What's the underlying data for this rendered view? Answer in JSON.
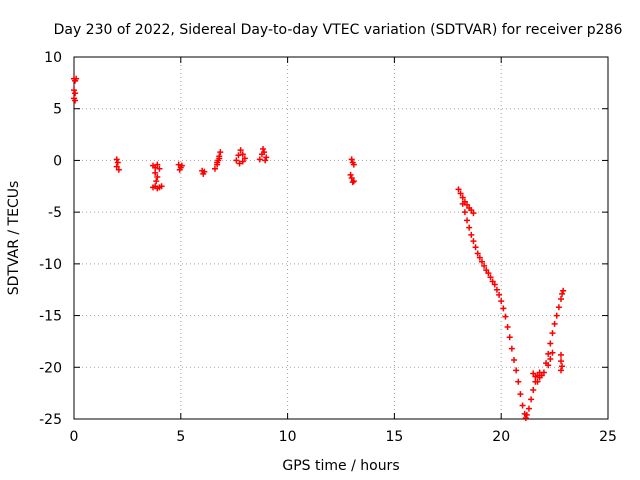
{
  "chart_data": {
    "type": "scatter",
    "title": "Day 230 of 2022, Sidereal Day-to-day VTEC variation (SDTVAR) for receiver p286",
    "xlabel": "GPS time / hours",
    "ylabel": "SDTVAR / TECUs",
    "xlim": [
      0,
      25
    ],
    "ylim": [
      -25,
      10
    ],
    "xticks": [
      0,
      5,
      10,
      15,
      20,
      25
    ],
    "yticks": [
      -25,
      -20,
      -15,
      -10,
      -5,
      0,
      5,
      10
    ],
    "grid": true,
    "legend": "none",
    "marker": "plus",
    "color": "#ff0000",
    "series": [
      {
        "points": [
          [
            0.0,
            7.9
          ],
          [
            0.05,
            7.7
          ],
          [
            0.1,
            7.9
          ],
          [
            0.0,
            6.8
          ],
          [
            0.05,
            6.5
          ],
          [
            0.0,
            6.0
          ],
          [
            0.05,
            5.8
          ],
          [
            2.0,
            0.1
          ],
          [
            2.05,
            -0.2
          ],
          [
            2.0,
            -0.6
          ],
          [
            2.1,
            -0.9
          ],
          [
            3.7,
            -0.5
          ],
          [
            3.8,
            -0.7
          ],
          [
            3.9,
            -0.4
          ],
          [
            4.0,
            -0.8
          ],
          [
            3.8,
            -1.2
          ],
          [
            3.9,
            -1.6
          ],
          [
            3.85,
            -2.0
          ],
          [
            3.7,
            -2.6
          ],
          [
            3.8,
            -2.5
          ],
          [
            3.9,
            -2.7
          ],
          [
            4.0,
            -2.6
          ],
          [
            4.1,
            -2.5
          ],
          [
            4.9,
            -0.4
          ],
          [
            5.0,
            -0.7
          ],
          [
            4.95,
            -0.9
          ],
          [
            5.05,
            -0.5
          ],
          [
            6.0,
            -1.0
          ],
          [
            6.05,
            -1.3
          ],
          [
            6.1,
            -1.1
          ],
          [
            6.6,
            -0.8
          ],
          [
            6.7,
            -0.4
          ],
          [
            6.75,
            0.0
          ],
          [
            6.8,
            0.4
          ],
          [
            6.85,
            0.8
          ],
          [
            6.7,
            -0.2
          ],
          [
            6.8,
            0.2
          ],
          [
            7.6,
            0.0
          ],
          [
            7.7,
            0.5
          ],
          [
            7.8,
            1.0
          ],
          [
            7.9,
            0.6
          ],
          [
            8.0,
            0.2
          ],
          [
            7.75,
            -0.3
          ],
          [
            7.9,
            -0.1
          ],
          [
            8.7,
            0.1
          ],
          [
            8.8,
            0.6
          ],
          [
            8.85,
            1.1
          ],
          [
            8.9,
            0.8
          ],
          [
            9.0,
            0.3
          ],
          [
            8.95,
            0.0
          ],
          [
            13.0,
            0.1
          ],
          [
            13.05,
            -0.2
          ],
          [
            13.1,
            -0.4
          ],
          [
            12.95,
            -1.4
          ],
          [
            13.0,
            -1.7
          ],
          [
            13.1,
            -2.0
          ],
          [
            13.05,
            -2.1
          ],
          [
            18.0,
            -2.8
          ],
          [
            18.1,
            -3.2
          ],
          [
            18.2,
            -3.6
          ],
          [
            18.3,
            -4.0
          ],
          [
            18.4,
            -4.3
          ],
          [
            18.5,
            -4.6
          ],
          [
            18.6,
            -4.8
          ],
          [
            18.7,
            -5.1
          ],
          [
            18.2,
            -4.2
          ],
          [
            18.3,
            -5.0
          ],
          [
            18.4,
            -5.8
          ],
          [
            18.5,
            -6.5
          ],
          [
            18.6,
            -7.2
          ],
          [
            18.7,
            -7.8
          ],
          [
            18.8,
            -8.4
          ],
          [
            18.9,
            -9.0
          ],
          [
            19.0,
            -9.4
          ],
          [
            19.1,
            -9.8
          ],
          [
            19.2,
            -10.2
          ],
          [
            19.3,
            -10.6
          ],
          [
            19.4,
            -10.9
          ],
          [
            19.5,
            -11.3
          ],
          [
            19.6,
            -11.7
          ],
          [
            19.7,
            -12.0
          ],
          [
            19.8,
            -12.5
          ],
          [
            19.9,
            -13.0
          ],
          [
            20.0,
            -13.6
          ],
          [
            20.1,
            -14.3
          ],
          [
            20.2,
            -15.1
          ],
          [
            20.3,
            -16.1
          ],
          [
            20.4,
            -17.1
          ],
          [
            20.5,
            -18.2
          ],
          [
            20.6,
            -19.3
          ],
          [
            20.7,
            -20.3
          ],
          [
            20.8,
            -21.4
          ],
          [
            20.9,
            -22.6
          ],
          [
            21.0,
            -23.7
          ],
          [
            21.1,
            -24.5
          ],
          [
            21.15,
            -24.9
          ],
          [
            21.2,
            -24.6
          ],
          [
            21.3,
            -24.0
          ],
          [
            21.4,
            -23.1
          ],
          [
            21.5,
            -22.2
          ],
          [
            21.6,
            -21.4
          ],
          [
            21.7,
            -20.8
          ],
          [
            21.8,
            -20.5
          ],
          [
            21.9,
            -20.8
          ],
          [
            22.0,
            -20.5
          ],
          [
            22.1,
            -19.6
          ],
          [
            22.2,
            -18.7
          ],
          [
            22.3,
            -17.7
          ],
          [
            22.4,
            -16.7
          ],
          [
            22.5,
            -15.8
          ],
          [
            22.6,
            -15.0
          ],
          [
            22.7,
            -14.2
          ],
          [
            22.8,
            -13.4
          ],
          [
            22.85,
            -12.9
          ],
          [
            22.9,
            -12.6
          ],
          [
            21.5,
            -20.6
          ],
          [
            21.6,
            -20.9
          ],
          [
            21.7,
            -21.4
          ],
          [
            21.8,
            -21.0
          ],
          [
            22.2,
            -19.8
          ],
          [
            22.3,
            -19.2
          ],
          [
            22.4,
            -18.6
          ],
          [
            22.8,
            -18.8
          ],
          [
            22.8,
            -19.4
          ],
          [
            22.85,
            -19.9
          ],
          [
            22.8,
            -20.3
          ]
        ]
      }
    ]
  }
}
